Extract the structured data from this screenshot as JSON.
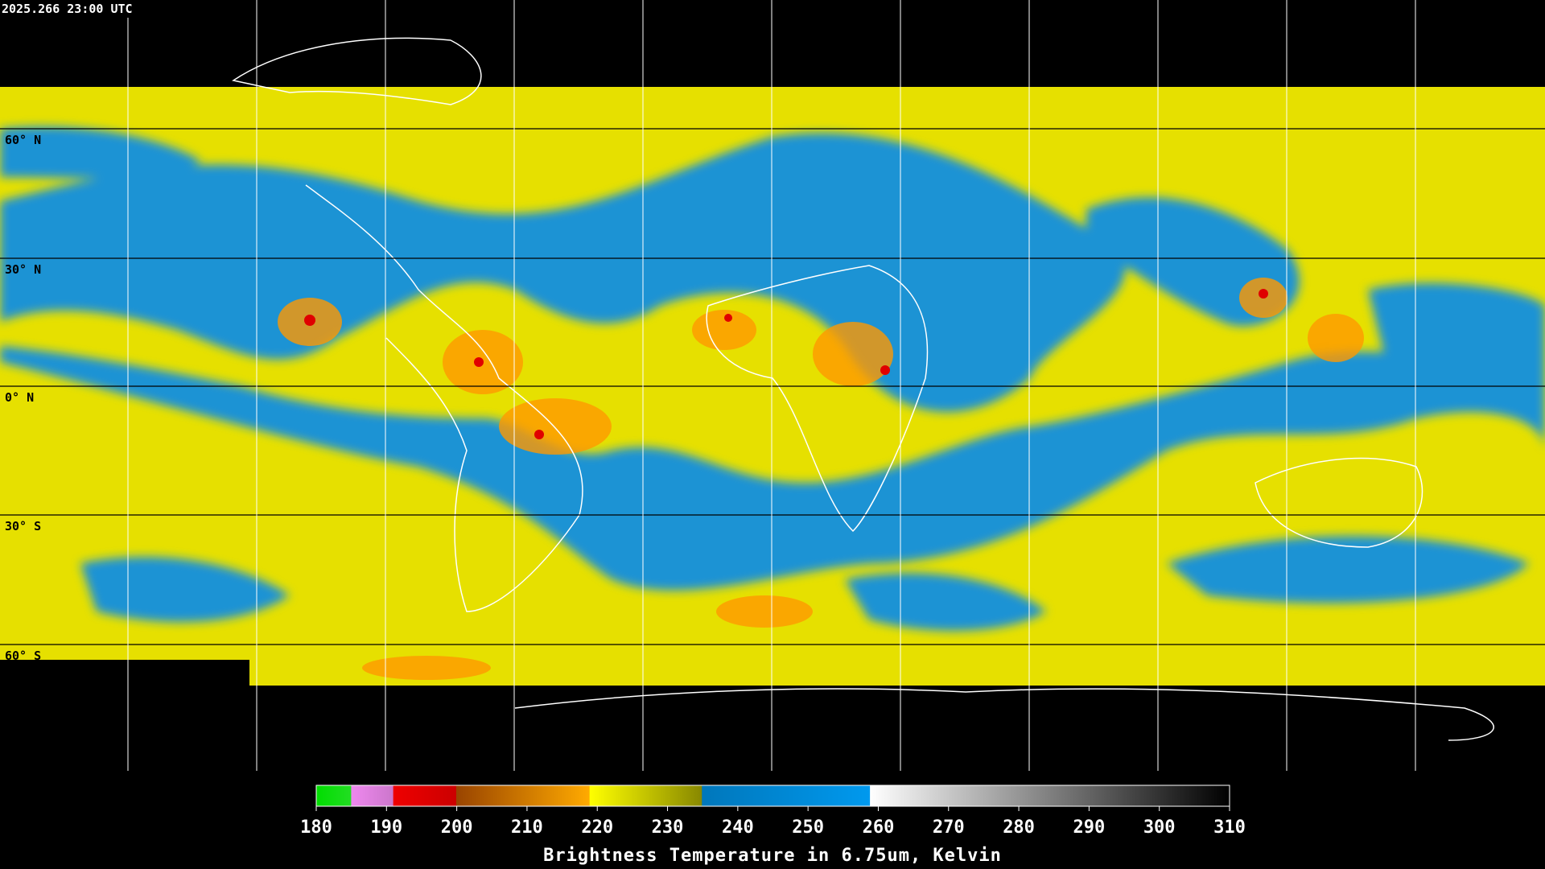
{
  "map": {
    "title": "2025.266 23:00 UTC",
    "latitude_labels": [
      "60° N",
      "30° N",
      "0° N",
      "30° S",
      "60° S"
    ],
    "colorbar": {
      "ticks": [
        180,
        190,
        200,
        210,
        220,
        230,
        240,
        250,
        260,
        270,
        280,
        290,
        300,
        310
      ],
      "label": "Brightness Temperature in 6.75um, Kelvin"
    }
  }
}
